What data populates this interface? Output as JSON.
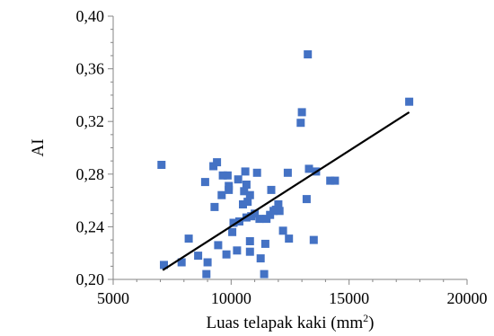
{
  "chart_data": {
    "type": "scatter",
    "title": "",
    "xlabel_base": "Luas telapak kaki (mm",
    "xlabel_sup": "2",
    "xlabel_tail": ")",
    "ylabel": "AI",
    "xlim": [
      5000,
      20000
    ],
    "ylim": [
      0.2,
      0.4
    ],
    "x_ticks": [
      5000,
      10000,
      15000,
      20000
    ],
    "x_tick_labels": [
      "5000",
      "10000",
      "15000",
      "20000"
    ],
    "y_ticks": [
      0.2,
      0.24,
      0.28,
      0.32,
      0.36,
      0.4
    ],
    "y_tick_labels": [
      "0,20",
      "0,24",
      "0,28",
      "0,32",
      "0,36",
      "0,40"
    ],
    "grid": false,
    "legend": "none",
    "marker_color": "#4472C4",
    "trendline_color": "#000000",
    "series": [
      {
        "points": [
          [
            7050,
            0.287
          ],
          [
            7150,
            0.211
          ],
          [
            7900,
            0.213
          ],
          [
            8200,
            0.231
          ],
          [
            8600,
            0.218
          ],
          [
            8900,
            0.274
          ],
          [
            9000,
            0.213
          ],
          [
            8950,
            0.204
          ],
          [
            9250,
            0.286
          ],
          [
            9300,
            0.255
          ],
          [
            9400,
            0.289
          ],
          [
            9450,
            0.226
          ],
          [
            9600,
            0.264
          ],
          [
            9650,
            0.279
          ],
          [
            9800,
            0.219
          ],
          [
            9900,
            0.268
          ],
          [
            9850,
            0.279
          ],
          [
            9900,
            0.271
          ],
          [
            10050,
            0.236
          ],
          [
            10100,
            0.243
          ],
          [
            10250,
            0.222
          ],
          [
            10300,
            0.276
          ],
          [
            10350,
            0.244
          ],
          [
            10500,
            0.257
          ],
          [
            10550,
            0.267
          ],
          [
            10600,
            0.282
          ],
          [
            10650,
            0.272
          ],
          [
            10650,
            0.247
          ],
          [
            10700,
            0.259
          ],
          [
            10800,
            0.264
          ],
          [
            10800,
            0.229
          ],
          [
            10800,
            0.221
          ],
          [
            10850,
            0.248
          ],
          [
            11000,
            0.25
          ],
          [
            11100,
            0.281
          ],
          [
            11200,
            0.246
          ],
          [
            11250,
            0.216
          ],
          [
            11400,
            0.204
          ],
          [
            11450,
            0.227
          ],
          [
            11500,
            0.246
          ],
          [
            11650,
            0.249
          ],
          [
            11700,
            0.268
          ],
          [
            11800,
            0.252
          ],
          [
            11900,
            0.253
          ],
          [
            12000,
            0.257
          ],
          [
            12050,
            0.252
          ],
          [
            12200,
            0.237
          ],
          [
            12400,
            0.281
          ],
          [
            12450,
            0.231
          ],
          [
            12950,
            0.319
          ],
          [
            13000,
            0.327
          ],
          [
            13200,
            0.261
          ],
          [
            13250,
            0.371
          ],
          [
            13300,
            0.284
          ],
          [
            13500,
            0.23
          ],
          [
            13600,
            0.282
          ],
          [
            14200,
            0.275
          ],
          [
            14400,
            0.275
          ],
          [
            17550,
            0.335
          ]
        ]
      }
    ],
    "trendline": {
      "x": [
        7100,
        17550
      ],
      "y": [
        0.207,
        0.327
      ]
    }
  }
}
